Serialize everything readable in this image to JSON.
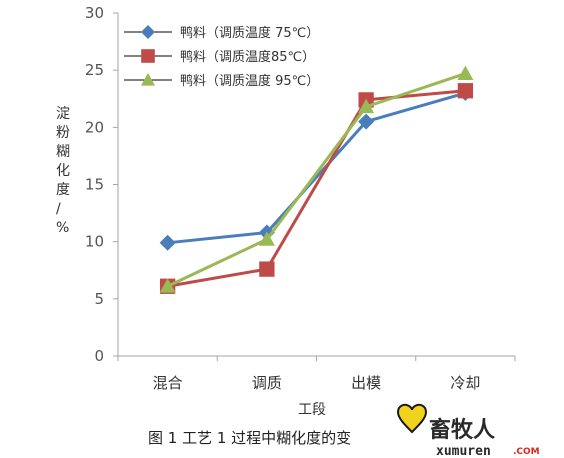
{
  "chart_data": {
    "type": "line",
    "categories": [
      "混合",
      "调质",
      "出模",
      "冷却"
    ],
    "series": [
      {
        "name": "鸭料（调质温度 75℃）",
        "values": [
          9.9,
          10.8,
          20.5,
          23.0
        ],
        "color": "#4a7ebb",
        "marker": "diamond"
      },
      {
        "name": "鸭料（调质温度85℃）",
        "values": [
          6.1,
          7.6,
          22.4,
          23.2
        ],
        "color": "#be4b48",
        "marker": "square"
      },
      {
        "name": "鸭料（调质温度 95℃）",
        "values": [
          6.1,
          10.2,
          21.8,
          24.7
        ],
        "color": "#98b954",
        "marker": "triangle"
      }
    ],
    "xlabel": "工段",
    "ylabel": "淀粉糊化度/%",
    "ylim": [
      0,
      30
    ],
    "yticks": [
      "0",
      "5",
      "10",
      "15",
      "20",
      "25",
      "30"
    ],
    "legend_position": "top-left",
    "grid": false
  },
  "caption": "图 1  工艺 1 过程中糊化度的变",
  "watermark": {
    "text": "畜牧人",
    "url": "xumuren",
    "url_suffix": ".COM"
  }
}
